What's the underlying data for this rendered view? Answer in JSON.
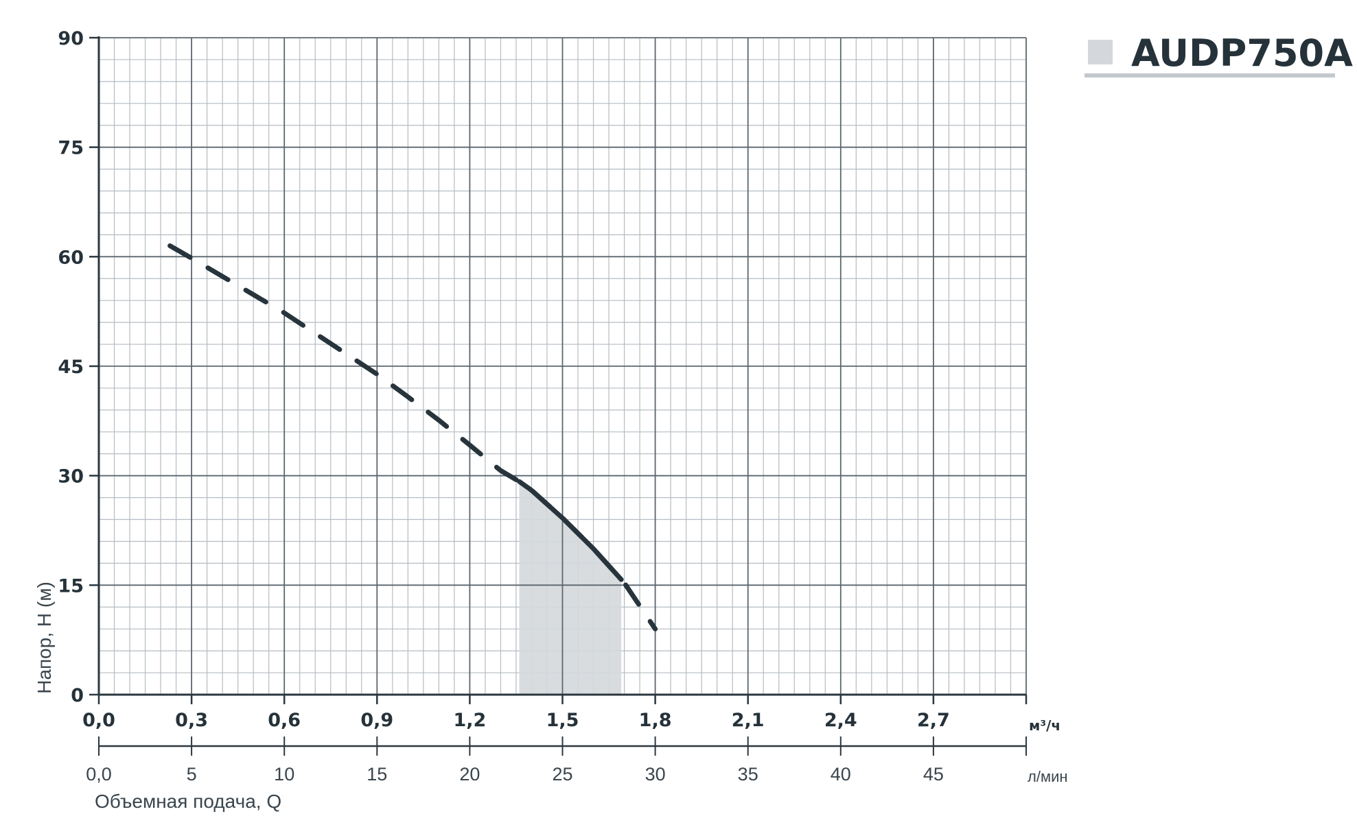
{
  "chart_data": {
    "type": "line",
    "title": "",
    "legend": {
      "placement": "top-right",
      "label": "AUDP750A",
      "swatch_color": "#d4d8dc"
    },
    "x_axis_primary": {
      "unit": "м³/ч",
      "range": [
        0,
        3.0
      ],
      "tick_values": [
        0,
        0.3,
        0.6,
        0.9,
        1.2,
        1.5,
        1.8,
        2.1,
        2.4,
        2.7
      ],
      "tick_labels": [
        "0,0",
        "0,3",
        "0,6",
        "0,9",
        "1,2",
        "1,5",
        "1,8",
        "2,1",
        "2,4",
        "2,7"
      ]
    },
    "x_axis_secondary": {
      "unit": "л/мин",
      "tick_values": [
        0,
        5,
        10,
        15,
        20,
        25,
        30,
        35,
        40,
        45
      ],
      "tick_labels": [
        "0,0",
        "5",
        "10",
        "15",
        "20",
        "25",
        "30",
        "35",
        "40",
        "45"
      ],
      "title": "Объемная подача, Q"
    },
    "y_axis": {
      "title": "Напор, H (м)",
      "range": [
        0,
        90
      ],
      "tick_values": [
        0,
        15,
        30,
        45,
        60,
        75,
        90
      ],
      "tick_labels": [
        "0",
        "15",
        "30",
        "45",
        "60",
        "75",
        "90"
      ]
    },
    "grid": true,
    "series": [
      {
        "name": "AUDP750A",
        "x": [
          0.23,
          0.3,
          0.4,
          0.5,
          0.6,
          0.7,
          0.8,
          0.9,
          1.0,
          1.1,
          1.2,
          1.3,
          1.36,
          1.4,
          1.5,
          1.6,
          1.7,
          1.8
        ],
        "y": [
          61.5,
          59.8,
          57.3,
          54.8,
          52.3,
          49.5,
          46.7,
          43.9,
          40.8,
          37.6,
          34.2,
          30.7,
          29.2,
          28.0,
          24.2,
          20.0,
          15.3,
          9.0
        ],
        "line_color": "#27343c"
      }
    ],
    "recommended_range": {
      "x": [
        1.36,
        1.69
      ],
      "fill_color": "#d4d8dc"
    }
  }
}
